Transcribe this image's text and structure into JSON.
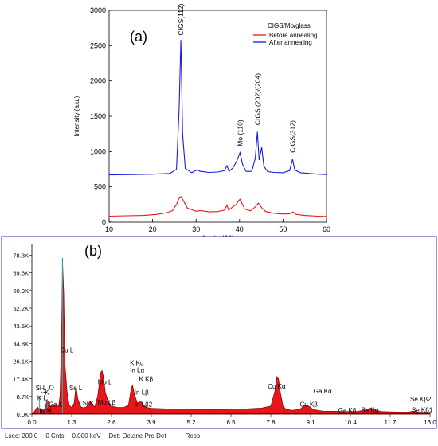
{
  "chart_data": [
    {
      "type": "line",
      "panel_label": "(a)",
      "title": "",
      "xlabel": "Angle (2θ)",
      "ylabel": "Intensity (a.u.)",
      "xlim": [
        10,
        60
      ],
      "ylim": [
        0,
        3000
      ],
      "x_ticks": [
        10,
        20,
        30,
        40,
        50,
        60
      ],
      "y_ticks": [
        0,
        500,
        1000,
        1500,
        2000,
        2500,
        3000
      ],
      "grid": false,
      "legend": {
        "title": "CIGS/Mo/glass",
        "position": "top-right"
      },
      "series": [
        {
          "name": "Before annealing",
          "color": "#e8161b",
          "x": [
            10,
            14,
            18,
            21,
            23,
            24.5,
            25.5,
            26.2,
            26.6,
            27.2,
            28,
            30,
            31,
            33,
            35,
            36.5,
            37.1,
            37.5,
            38.3,
            39.2,
            40.1,
            40.6,
            41.2,
            42.5,
            43.6,
            44.3,
            45.1,
            46,
            48,
            50,
            51.5,
            52.3,
            53,
            55,
            58,
            60
          ],
          "y": [
            85,
            90,
            95,
            110,
            130,
            160,
            250,
            355,
            360,
            290,
            200,
            155,
            165,
            145,
            150,
            170,
            240,
            170,
            210,
            250,
            325,
            260,
            185,
            160,
            215,
            270,
            205,
            150,
            125,
            115,
            120,
            145,
            110,
            95,
            85,
            80
          ]
        },
        {
          "name": "After annealing",
          "color": "#1a1ae0",
          "x": [
            10,
            15,
            20,
            24,
            25.5,
            26.1,
            26.5,
            26.9,
            27.5,
            29,
            30.2,
            31,
            33,
            35,
            36.5,
            37.1,
            37.6,
            38.5,
            39.4,
            40.1,
            40.7,
            41.5,
            42.8,
            43.6,
            44.1,
            44.5,
            45.1,
            45.6,
            46.5,
            48,
            50,
            51.5,
            52.2,
            52.7,
            54,
            56,
            58,
            60
          ],
          "y": [
            670,
            675,
            680,
            690,
            750,
            1600,
            2580,
            1250,
            760,
            700,
            740,
            720,
            705,
            710,
            730,
            800,
            720,
            770,
            870,
            985,
            820,
            720,
            720,
            900,
            1280,
            880,
            1060,
            790,
            715,
            705,
            700,
            730,
            890,
            740,
            700,
            690,
            680,
            675
          ]
        }
      ],
      "annotations": [
        {
          "text": "CIGS(112)",
          "x": 26.5,
          "y": 2600
        },
        {
          "text": "Mo (110)",
          "x": 40.1,
          "y": 1030
        },
        {
          "text": "CIGS (202)/(204)",
          "x": 44.2,
          "y": 1330
        },
        {
          "text": "CIGS(312)",
          "x": 52.2,
          "y": 940
        }
      ]
    },
    {
      "type": "area",
      "panel_label": "(b)",
      "title": "",
      "xlabel": "",
      "ylabel": "",
      "xlim": [
        0.0,
        13.0
      ],
      "ylim": [
        0,
        84000
      ],
      "x_tick_labels": [
        "0.0",
        "1.3",
        "2.6",
        "3.9",
        "5.2",
        "6.5",
        "7.8",
        "9.1",
        "10.4",
        "11.7",
        "13.0"
      ],
      "y_tick_labels": [
        "0.0K",
        "8.7K",
        "17.4K",
        "26.1K",
        "34.8K",
        "43.5K",
        "52.2K",
        "60.9K",
        "69.6K",
        "78.3K"
      ],
      "grid": false,
      "series": [
        {
          "name": "",
          "color": "#e8161b",
          "x": [
            0.05,
            0.1,
            0.18,
            0.26,
            0.3,
            0.4,
            0.5,
            0.6,
            0.7,
            0.8,
            0.88,
            0.92,
            0.97,
            1.0,
            1.04,
            1.08,
            1.15,
            1.22,
            1.3,
            1.38,
            1.44,
            1.5,
            1.6,
            1.7,
            1.78,
            1.9,
            2.05,
            2.15,
            2.25,
            2.29,
            2.33,
            2.4,
            2.5,
            2.6,
            2.8,
            3.0,
            3.15,
            3.25,
            3.29,
            3.35,
            3.45,
            3.55,
            3.65,
            3.75,
            3.9,
            4.2,
            4.6,
            5.2,
            6.0,
            7.0,
            7.5,
            7.8,
            7.93,
            8.0,
            8.05,
            8.12,
            8.2,
            8.3,
            8.5,
            8.75,
            8.88,
            8.98,
            9.1,
            9.2,
            9.35,
            9.5,
            9.8,
            10.2,
            10.6,
            10.92,
            11.05,
            11.2,
            11.4,
            11.8,
            12.3,
            12.45,
            12.6,
            13.0
          ],
          "y": [
            600,
            1700,
            3600,
            2000,
            2200,
            1500,
            7200,
            3600,
            5000,
            3600,
            4300,
            9500,
            40000,
            75000,
            60000,
            25000,
            11000,
            4300,
            3200,
            5500,
            14000,
            7500,
            3600,
            3100,
            3600,
            6400,
            3400,
            9000,
            20500,
            21500,
            19000,
            10500,
            6000,
            4000,
            3300,
            3300,
            4300,
            13000,
            14200,
            9500,
            5400,
            6400,
            4300,
            3300,
            2900,
            2700,
            2500,
            2400,
            2300,
            2600,
            3000,
            4000,
            11000,
            18500,
            17800,
            10000,
            4000,
            2400,
            1900,
            2400,
            4000,
            4400,
            3300,
            2200,
            1800,
            1500,
            1400,
            1300,
            1300,
            2100,
            3100,
            2100,
            1300,
            1100,
            1000,
            1500,
            1000,
            800
          ]
        }
      ],
      "annotations": [
        {
          "text": "Cu L",
          "x": 0.92,
          "y": 30500
        },
        {
          "text": "In M",
          "x": 0.24,
          "y": 600
        },
        {
          "text": "K  L",
          "x": 0.18,
          "y": 6800
        },
        {
          "text": "Si L",
          "x": 0.12,
          "y": 11700
        },
        {
          "text": "C",
          "x": 0.28,
          "y": 10400
        },
        {
          "text": "K",
          "x": 0.42,
          "y": 9700
        },
        {
          "text": "O",
          "x": 0.56,
          "y": 12000
        },
        {
          "text": "Ga L",
          "x": 0.55,
          "y": 3700
        },
        {
          "text": "Se L",
          "x": 1.22,
          "y": 11700
        },
        {
          "text": "Si K",
          "x": 1.65,
          "y": 4400
        },
        {
          "text": "Mo L",
          "x": 2.15,
          "y": 14700
        },
        {
          "text": "Mo Lβ",
          "x": 2.15,
          "y": 4800
        },
        {
          "text": "K  Kα",
          "x": 3.2,
          "y": 24200
        },
        {
          "text": "In Lα",
          "x": 3.2,
          "y": 20600
        },
        {
          "text": "K  Kβ",
          "x": 3.5,
          "y": 16300
        },
        {
          "text": "In Lβ",
          "x": 3.35,
          "y": 9700
        },
        {
          "text": "In Lβ2",
          "x": 3.35,
          "y": 3700
        },
        {
          "text": "Cu Kα",
          "x": 7.7,
          "y": 12500
        },
        {
          "text": "Ga Kα",
          "x": 9.2,
          "y": 10300
        },
        {
          "text": "Cu Kβ",
          "x": 8.75,
          "y": 3700
        },
        {
          "text": "Ga Kβ",
          "x": 10.0,
          "y": 700
        },
        {
          "text": "Se Kα",
          "x": 10.75,
          "y": 1000
        },
        {
          "text": "Se Kβ2",
          "x": 12.35,
          "y": 6300
        },
        {
          "text": "Se Kβ1",
          "x": 12.4,
          "y": 1000
        }
      ]
    }
  ],
  "status_bar": {
    "lsec": "Lsec: 200.0",
    "cnts": "0 Cnts",
    "kev": "0.000 keV",
    "det": "Det: Octane Pro Det",
    "reso": "Reso"
  }
}
